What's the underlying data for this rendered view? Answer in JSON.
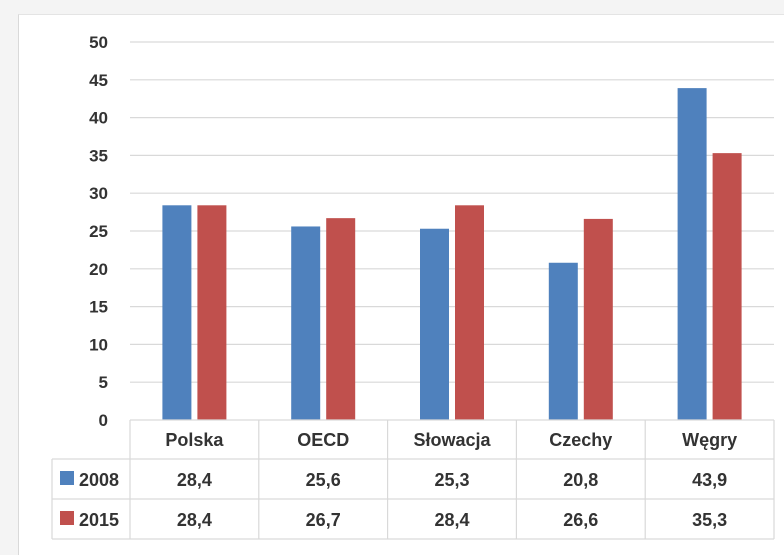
{
  "chart_data": {
    "type": "bar",
    "title": "",
    "xlabel": "",
    "ylabel": "",
    "categories": [
      "Polska",
      "OECD",
      "Słowacja",
      "Czechy",
      "Węgry"
    ],
    "series": [
      {
        "name": "2008",
        "color": "#4f81bd",
        "values": [
          28.4,
          25.6,
          25.3,
          20.8,
          43.9
        ],
        "labels": [
          "28,4",
          "25,6",
          "25,3",
          "20,8",
          "43,9"
        ]
      },
      {
        "name": "2015",
        "color": "#c0504d",
        "values": [
          28.4,
          26.7,
          28.4,
          26.6,
          35.3
        ],
        "labels": [
          "28,4",
          "26,7",
          "28,4",
          "26,6",
          "35,3"
        ]
      }
    ],
    "ylim": [
      0,
      50
    ],
    "yticks": [
      0,
      5,
      10,
      15,
      20,
      25,
      30,
      35,
      40,
      45,
      50
    ],
    "grid": true,
    "legend": "data-table",
    "gridline_color": "#d9d9d9"
  }
}
